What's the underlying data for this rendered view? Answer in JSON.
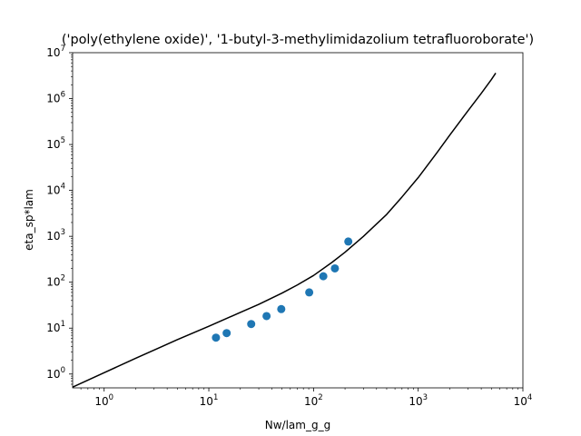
{
  "chart_data": {
    "type": "scatter",
    "title": "('poly(ethylene oxide)', '1-butyl-3-methylimidazolium tetrafluoroborate')",
    "xlabel": "Nw/lam_g_g",
    "ylabel": "eta_sp*lam",
    "xscale": "log",
    "yscale": "log",
    "xlim": [
      0.5,
      10000
    ],
    "ylim": [
      0.5,
      10000000
    ],
    "grid": false,
    "x_ticks": [
      {
        "base": "10",
        "exp": "0",
        "value": 1
      },
      {
        "base": "10",
        "exp": "1",
        "value": 10
      },
      {
        "base": "10",
        "exp": "2",
        "value": 100
      },
      {
        "base": "10",
        "exp": "3",
        "value": 1000
      },
      {
        "base": "10",
        "exp": "4",
        "value": 10000
      }
    ],
    "y_ticks": [
      {
        "base": "10",
        "exp": "0",
        "value": 1
      },
      {
        "base": "10",
        "exp": "1",
        "value": 10
      },
      {
        "base": "10",
        "exp": "2",
        "value": 100
      },
      {
        "base": "10",
        "exp": "3",
        "value": 1000
      },
      {
        "base": "10",
        "exp": "4",
        "value": 10000
      },
      {
        "base": "10",
        "exp": "5",
        "value": 100000
      },
      {
        "base": "10",
        "exp": "6",
        "value": 1000000
      },
      {
        "base": "10",
        "exp": "7",
        "value": 10000000
      }
    ],
    "series": [
      {
        "kind": "points",
        "color": "#1f77b4",
        "x": [
          11.7,
          14.8,
          25.4,
          35.6,
          49.2,
          91.0,
          124.0,
          160.0,
          215.0
        ],
        "y": [
          6.2,
          7.8,
          12.3,
          18.3,
          26.0,
          60.0,
          135.0,
          200.0,
          770.0
        ]
      },
      {
        "kind": "line",
        "color": "#000000",
        "x": [
          0.5,
          1,
          2,
          5,
          10,
          20,
          30,
          50,
          70,
          100,
          150,
          200,
          300,
          500,
          700,
          1000,
          1500,
          2000,
          3000,
          4000,
          5000,
          5500
        ],
        "y": [
          0.52,
          1.07,
          2.2,
          5.6,
          11.0,
          22.0,
          33.0,
          58.0,
          87.0,
          140.0,
          270.0,
          450.0,
          1000.0,
          3000.0,
          7200.0,
          19000.0,
          65000.0,
          160000.0,
          550000.0,
          1300000.0,
          2600000.0,
          3600000.0
        ]
      }
    ]
  }
}
